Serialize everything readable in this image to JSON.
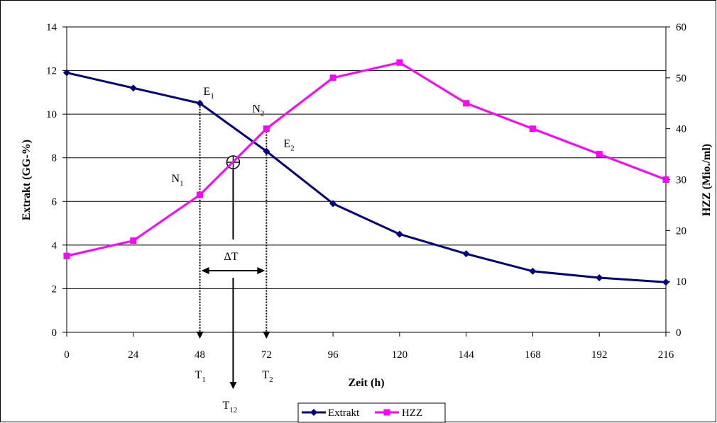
{
  "chart_data": {
    "type": "line",
    "xlabel": "Zeit (h)",
    "ylabel_left": "Extrakt (GG-%)",
    "ylabel_right": "HZZ (Mio./ml)",
    "x": [
      0,
      24,
      48,
      72,
      96,
      120,
      144,
      168,
      192,
      216
    ],
    "x_ticks": [
      "0",
      "24",
      "48",
      "72",
      "96",
      "120",
      "144",
      "168",
      "192",
      "216"
    ],
    "y_left_ticks": [
      "0",
      "2",
      "4",
      "6",
      "8",
      "10",
      "12",
      "14"
    ],
    "y_right_ticks": [
      "0",
      "10",
      "20",
      "30",
      "40",
      "50",
      "60"
    ],
    "ylim_left": [
      0,
      14
    ],
    "ylim_right": [
      0,
      60
    ],
    "grid": "horizontal",
    "legend_position": "bottom",
    "series": [
      {
        "name": "Extrakt",
        "axis": "left",
        "color": "#000080",
        "marker": "diamond",
        "values": [
          11.9,
          11.2,
          10.5,
          8.3,
          5.9,
          4.5,
          3.6,
          2.8,
          2.5,
          2.3
        ]
      },
      {
        "name": "HZZ",
        "axis": "right",
        "color": "#ff00ff",
        "marker": "square",
        "values": [
          15,
          18,
          27,
          40,
          50,
          53,
          45,
          40,
          35,
          30
        ]
      }
    ],
    "annotations": {
      "E1": {
        "base": "E",
        "sub": "1",
        "x": 48,
        "y_left": 10.5
      },
      "E2": {
        "base": "E",
        "sub": "2",
        "x": 72,
        "y_left": 8.3
      },
      "N1": {
        "base": "N",
        "sub": "1",
        "x": 48,
        "y_right": 27
      },
      "N2": {
        "base": "N",
        "sub": "2",
        "x": 72,
        "y_right": 40
      },
      "T1": {
        "base": "T",
        "sub": "1",
        "x": 48
      },
      "T2": {
        "base": "T",
        "sub": "2",
        "x": 72
      },
      "T12": {
        "base": "T",
        "sub": "12",
        "x": 60
      },
      "delta_t": "ΔT",
      "center_symbol": "⊕"
    }
  }
}
